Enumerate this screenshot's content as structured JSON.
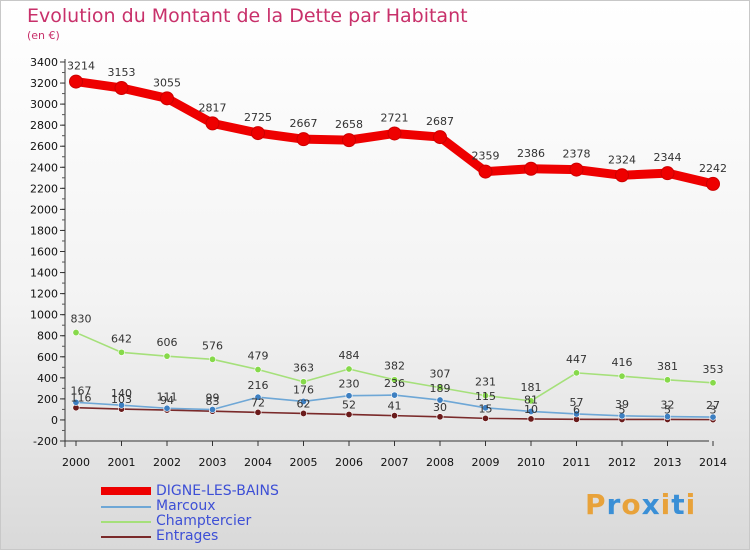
{
  "chart_data": {
    "type": "line",
    "title": "Evolution du Montant de la Dette par Habitant",
    "subtitle": "(en €)",
    "xlabel": "",
    "ylabel": "",
    "x": [
      "2000",
      "2001",
      "2002",
      "2003",
      "2004",
      "2005",
      "2006",
      "2007",
      "2008",
      "2009",
      "2010",
      "2011",
      "2012",
      "2013",
      "2014"
    ],
    "ylim": [
      -200,
      3400
    ],
    "yticks": [
      -200,
      0,
      200,
      400,
      600,
      800,
      1000,
      1200,
      1400,
      1600,
      1800,
      2000,
      2200,
      2400,
      2600,
      2800,
      3000,
      3200,
      3400
    ],
    "grid": false,
    "legend_position": "bottom-left",
    "series": [
      {
        "name": "DIGNE-LES-BAINS",
        "color": "#ee0000",
        "values": [
          3214,
          3153,
          3055,
          2817,
          2725,
          2667,
          2658,
          2721,
          2687,
          2359,
          2386,
          2378,
          2324,
          2344,
          2242
        ]
      },
      {
        "name": "Marcoux",
        "color": "#6ea7d6",
        "values": [
          167,
          140,
          111,
          99,
          216,
          176,
          230,
          236,
          189,
          115,
          81,
          57,
          39,
          32,
          27
        ]
      },
      {
        "name": "Champtercier",
        "color": "#a5e07a",
        "values": [
          830,
          642,
          606,
          576,
          479,
          363,
          484,
          382,
          307,
          231,
          181,
          447,
          416,
          381,
          353
        ]
      },
      {
        "name": "Entrages",
        "color": "#7a2a2a",
        "values": [
          116,
          103,
          94,
          83,
          72,
          62,
          52,
          41,
          30,
          15,
          10,
          6,
          5,
          5,
          3
        ]
      }
    ]
  },
  "logo": {
    "text": "Proxiti",
    "letters": [
      "P",
      "r",
      "o",
      "x",
      "i",
      "t",
      "i"
    ],
    "colors": [
      "#e8a23a",
      "#3a8fd6",
      "#e8a23a",
      "#3a8fd6",
      "#e8a23a",
      "#3a8fd6",
      "#e8a23a"
    ]
  }
}
